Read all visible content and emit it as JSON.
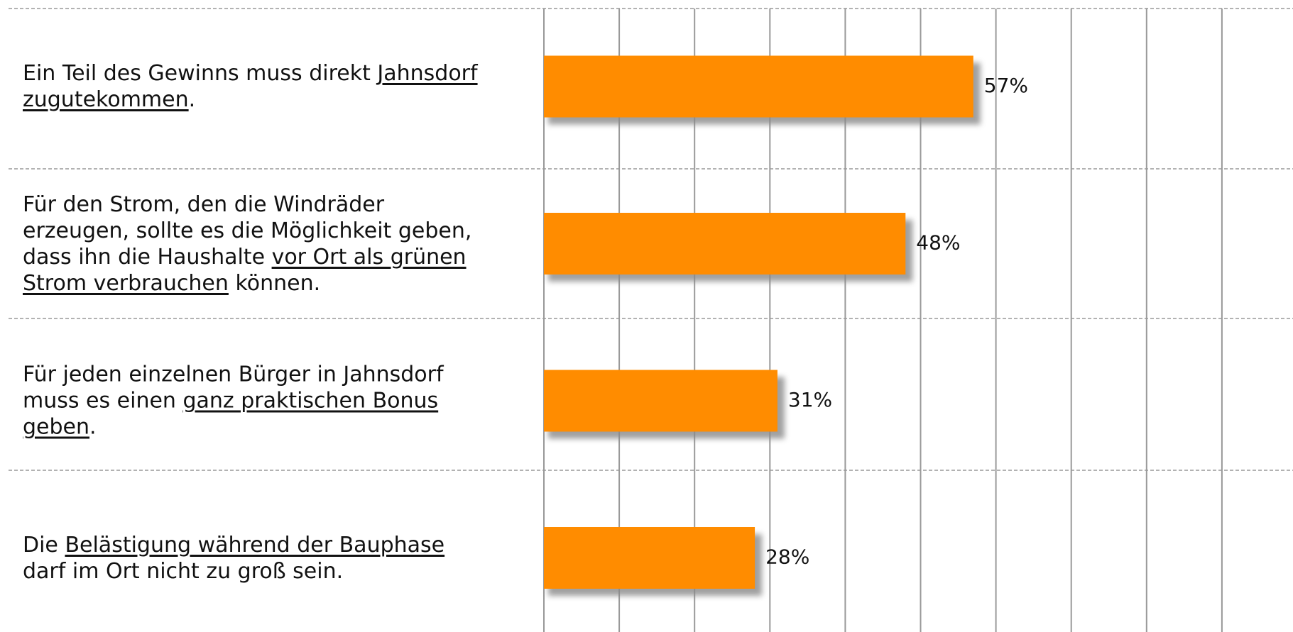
{
  "chart_data": {
    "type": "bar",
    "orientation": "horizontal",
    "categories": [
      [
        {
          "text": "Ein Teil des Gewinns muss direkt "
        },
        {
          "text": "Jahnsdorf zugutekommen",
          "underline": true
        },
        {
          "text": "."
        }
      ],
      [
        {
          "text": "Für den Strom, den die Windräder erzeugen, sollte es die Möglichkeit geben, dass ihn die Haushalte "
        },
        {
          "text": "vor Ort als grünen Strom verbrauchen",
          "underline": true
        },
        {
          "text": " können."
        }
      ],
      [
        {
          "text": "Für jeden einzelnen Bürger in Jahnsdorf muss es einen "
        },
        {
          "text": "ganz praktischen Bonus geben",
          "underline": true
        },
        {
          "text": "."
        }
      ],
      [
        {
          "text": "Die "
        },
        {
          "text": "Belästigung während der Bauphase",
          "underline": true
        },
        {
          "text": " darf im Ort nicht zu groß sein."
        }
      ]
    ],
    "values": [
      57,
      48,
      31,
      28
    ],
    "value_labels": [
      "57%",
      "48%",
      "31%",
      "28%"
    ],
    "color": "#ff8c00",
    "xlim": [
      0,
      100
    ],
    "xticks": [
      0,
      10,
      20,
      30,
      40,
      50,
      60,
      70,
      80,
      90,
      100
    ],
    "grid": true
  }
}
